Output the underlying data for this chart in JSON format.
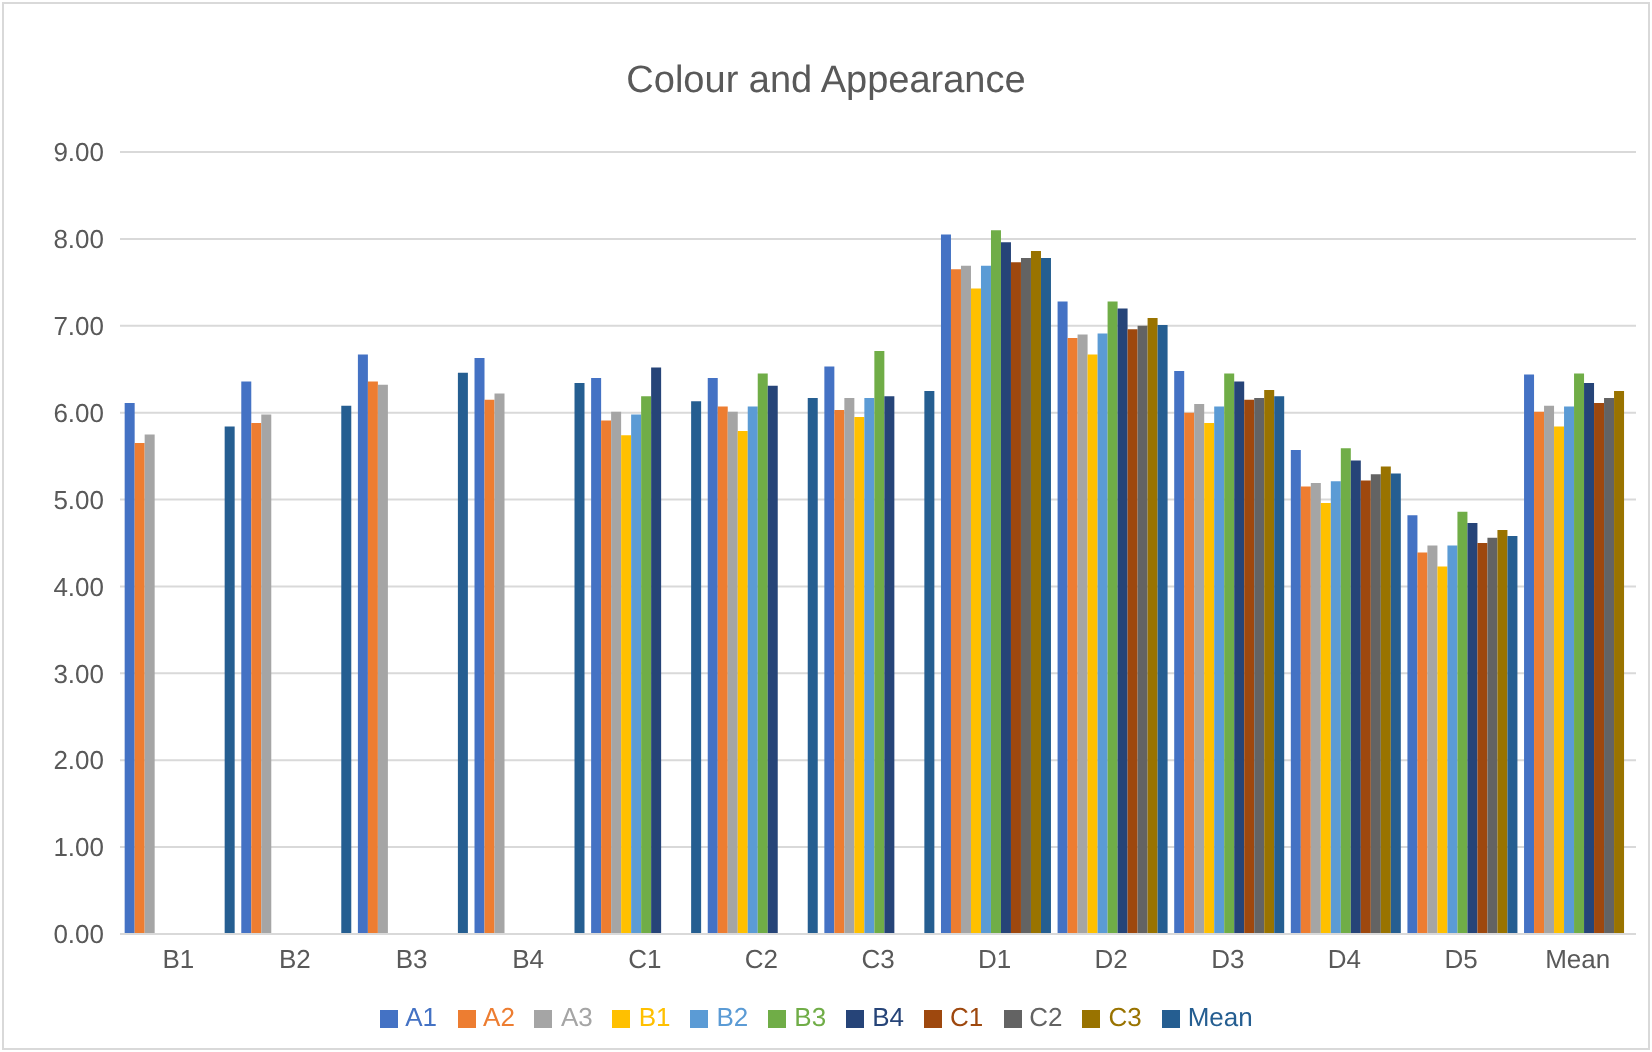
{
  "chart_data": {
    "type": "bar",
    "title": "Colour and Appearance",
    "categories": [
      "B1",
      "B2",
      "B3",
      "B4",
      "C1",
      "C2",
      "C3",
      "D1",
      "D2",
      "D3",
      "D4",
      "D5",
      "Mean"
    ],
    "series": [
      {
        "name": "A1",
        "color": "#4472c4",
        "values": [
          6.11,
          6.36,
          6.67,
          6.63,
          6.4,
          6.4,
          6.53,
          8.05,
          7.28,
          6.48,
          5.57,
          4.82,
          6.44
        ]
      },
      {
        "name": "A2",
        "color": "#ed7d31",
        "values": [
          5.65,
          5.88,
          6.36,
          6.15,
          5.91,
          6.07,
          6.03,
          7.65,
          6.86,
          6.0,
          5.15,
          4.39,
          6.01
        ]
      },
      {
        "name": "A3",
        "color": "#a5a5a5",
        "values": [
          5.75,
          5.98,
          6.32,
          6.22,
          6.01,
          6.01,
          6.17,
          7.69,
          6.9,
          6.1,
          5.19,
          4.47,
          6.08
        ]
      },
      {
        "name": "B1",
        "color": "#ffc000",
        "values": [
          null,
          null,
          null,
          null,
          5.74,
          5.79,
          5.95,
          7.43,
          6.67,
          5.88,
          4.96,
          4.23,
          5.84
        ]
      },
      {
        "name": "B2",
        "color": "#5b9bd5",
        "values": [
          null,
          null,
          null,
          null,
          5.98,
          6.07,
          6.17,
          7.69,
          6.91,
          6.07,
          5.21,
          4.47,
          6.07
        ]
      },
      {
        "name": "B3",
        "color": "#70ad47",
        "values": [
          null,
          null,
          null,
          null,
          6.19,
          6.45,
          6.71,
          8.1,
          7.28,
          6.45,
          5.59,
          4.86,
          6.45
        ]
      },
      {
        "name": "B4",
        "color": "#264478",
        "values": [
          null,
          null,
          null,
          null,
          6.52,
          6.31,
          6.19,
          7.96,
          7.2,
          6.36,
          5.45,
          4.73,
          6.34
        ]
      },
      {
        "name": "C1",
        "color": "#9e480e",
        "values": [
          null,
          null,
          null,
          null,
          null,
          null,
          null,
          7.73,
          6.96,
          6.15,
          5.22,
          4.5,
          6.11
        ]
      },
      {
        "name": "C2",
        "color": "#636363",
        "values": [
          null,
          null,
          null,
          null,
          null,
          null,
          null,
          7.78,
          7.0,
          6.17,
          5.29,
          4.56,
          6.17
        ]
      },
      {
        "name": "C3",
        "color": "#997300",
        "values": [
          null,
          null,
          null,
          null,
          null,
          null,
          null,
          7.86,
          7.09,
          6.26,
          5.38,
          4.65,
          6.25
        ]
      },
      {
        "name": "Mean",
        "color": "#255e91",
        "values": [
          5.84,
          6.08,
          6.46,
          6.34,
          6.13,
          6.17,
          6.25,
          7.78,
          7.01,
          6.19,
          5.3,
          4.58,
          null
        ]
      }
    ],
    "ylim": [
      0,
      9
    ],
    "yticks": [
      {
        "value": 0,
        "label": "0.00"
      },
      {
        "value": 1,
        "label": "1.00"
      },
      {
        "value": 2,
        "label": "2.00"
      },
      {
        "value": 3,
        "label": "3.00"
      },
      {
        "value": 4,
        "label": "4.00"
      },
      {
        "value": 5,
        "label": "5.00"
      },
      {
        "value": 6,
        "label": "6.00"
      },
      {
        "value": 7,
        "label": "7.00"
      },
      {
        "value": 8,
        "label": "8.00"
      },
      {
        "value": 9,
        "label": "9.00"
      }
    ],
    "grid": "y",
    "legend": "bottom"
  }
}
